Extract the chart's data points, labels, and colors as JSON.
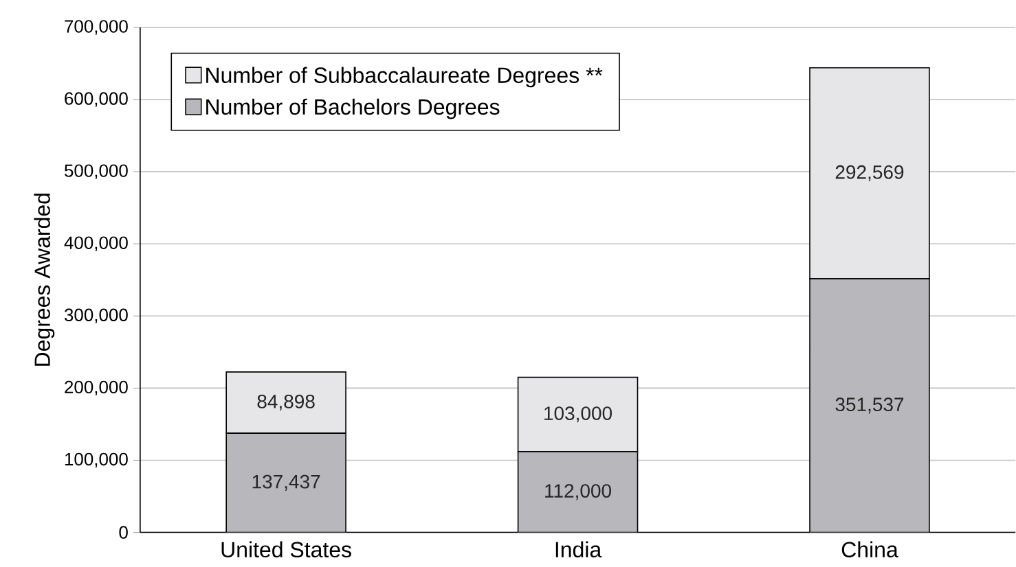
{
  "chart_data": {
    "type": "bar",
    "stacked": true,
    "ylabel": "Degrees Awarded",
    "categories": [
      "United States",
      "India",
      "China"
    ],
    "series": [
      {
        "name": "Number of Bachelors Degrees",
        "color": "#b8b8bc",
        "values": [
          137437,
          112000,
          351537
        ],
        "value_labels": [
          "137,437",
          "112,000",
          "351,537"
        ]
      },
      {
        "name": "Number of Subbaccalaureate Degrees **",
        "color": "#e6e6e8",
        "values": [
          84898,
          103000,
          292569
        ],
        "value_labels": [
          "84,898",
          "103,000",
          "292,569"
        ]
      }
    ],
    "ylim": [
      0,
      700000
    ],
    "yticks": [
      0,
      {
        "value": 100000,
        "label": "100,000"
      },
      {
        "value": 200000,
        "label": "200,000"
      },
      {
        "value": 300000,
        "label": "300,000"
      },
      {
        "value": 400000,
        "label": "400,000"
      },
      {
        "value": 500000,
        "label": "500,000"
      },
      {
        "value": 600000,
        "label": "600,000"
      },
      {
        "value": 700000,
        "label": "700,000"
      }
    ],
    "grid": "y",
    "legend": "top left"
  }
}
